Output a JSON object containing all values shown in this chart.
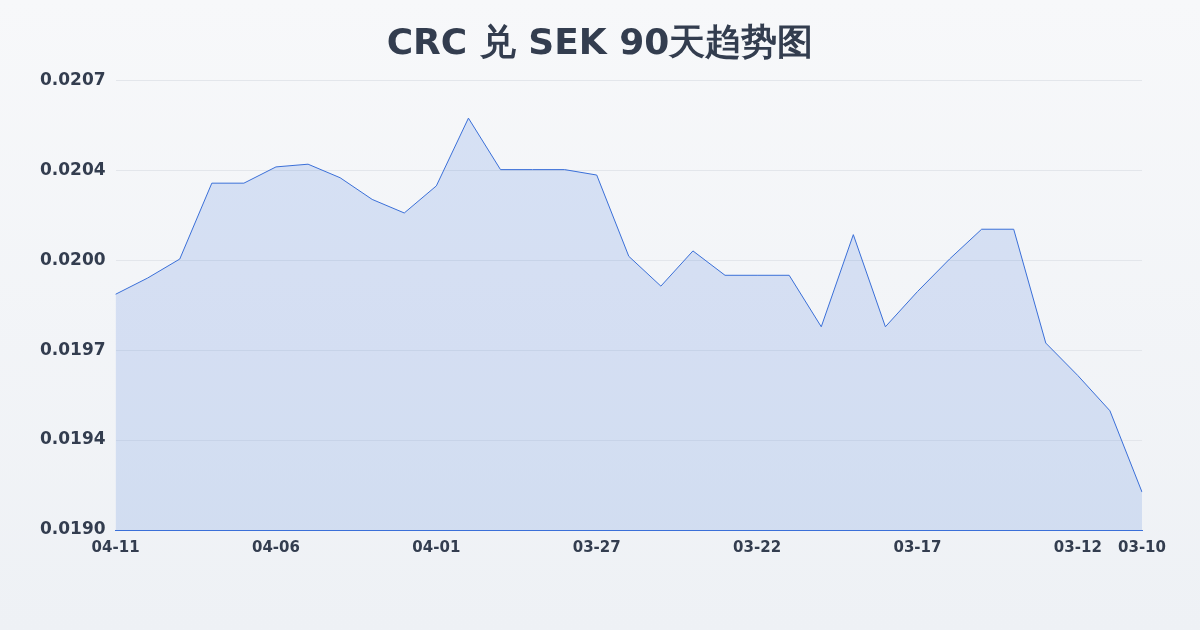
{
  "chart_data": {
    "type": "area",
    "title": "CRC 兑 SEK 90天趋势图",
    "categories": [
      "04-11",
      null,
      null,
      null,
      null,
      "04-06",
      null,
      null,
      null,
      null,
      "04-01",
      null,
      null,
      null,
      null,
      "03-27",
      null,
      null,
      null,
      null,
      "03-22",
      null,
      null,
      null,
      null,
      "03-17",
      null,
      null,
      null,
      null,
      "03-12",
      null,
      "03-10"
    ],
    "series": [
      {
        "color": "#3a6fd8",
        "values": [
          0.01991,
          0.01997,
          0.02004,
          0.02032,
          0.02032,
          0.02038,
          0.02039,
          0.02034,
          0.02026,
          0.02021,
          0.02031,
          0.02056,
          0.02037,
          0.02037,
          0.02037,
          0.02035,
          0.02005,
          0.01994,
          0.02007,
          0.01998,
          0.01998,
          0.01998,
          0.01979,
          0.02013,
          0.01979,
          0.01992,
          0.02004,
          0.02015,
          0.02015,
          0.01973,
          0.01961,
          0.01948,
          0.01918
        ]
      }
    ],
    "ylim": [
      0.01904,
      0.0207
    ],
    "yticks": [
      {
        "value": 0.01904,
        "label": "0.0190"
      },
      {
        "value": 0.019372,
        "label": "0.0194"
      },
      {
        "value": 0.019704,
        "label": "0.0197"
      },
      {
        "value": 0.020036,
        "label": "0.0200"
      },
      {
        "value": 0.020368,
        "label": "0.0204"
      },
      {
        "value": 0.0207,
        "label": "0.0207"
      }
    ],
    "grid": "y",
    "legend": false,
    "marker": "none",
    "line_style": "solid"
  }
}
